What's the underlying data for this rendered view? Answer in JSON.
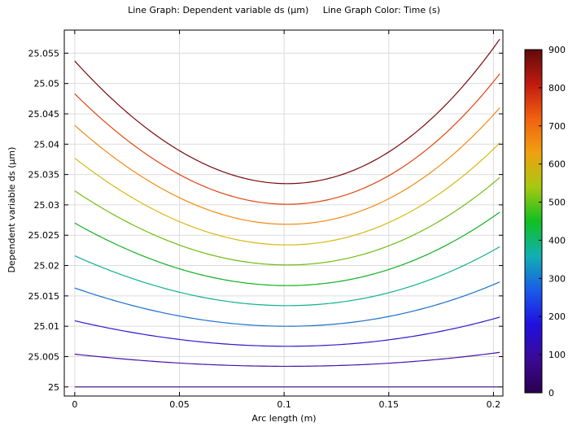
{
  "chart_data": {
    "type": "line",
    "title": "Line Graph: Dependent variable ds (µm)     Line Graph Color: Time (s)",
    "xlabel": "Arc length (m)",
    "ylabel": "Dependent variable ds (µm)",
    "xlim": [
      -0.005,
      0.2045
    ],
    "ylim": [
      24.9985,
      25.0588
    ],
    "grid": true,
    "x_ticks": [
      0,
      0.05,
      0.1,
      0.15,
      0.2
    ],
    "x_tick_labels": [
      "0",
      "0.05",
      "0.1",
      "0.15",
      "0.2"
    ],
    "y_ticks": [
      25,
      25.005,
      25.01,
      25.015,
      25.02,
      25.025,
      25.03,
      25.035,
      25.04,
      25.045,
      25.05,
      25.055
    ],
    "y_tick_labels": [
      "25",
      "25.005",
      "25.01",
      "25.015",
      "25.02",
      "25.025",
      "25.03",
      "25.035",
      "25.04",
      "25.045",
      "25.05",
      "25.055"
    ],
    "x_range": [
      0,
      0.203
    ],
    "series": [
      {
        "time": 0,
        "y_left": 25.0,
        "y_min": 25.0,
        "y_right": 25.0,
        "color": "#3b0a78"
      },
      {
        "time": 90,
        "y_left": 25.0054,
        "y_min": 25.0034,
        "y_right": 25.0057,
        "color": "#4a10a8"
      },
      {
        "time": 180,
        "y_left": 25.0109,
        "y_min": 25.0067,
        "y_right": 25.0115,
        "color": "#2a18d0"
      },
      {
        "time": 270,
        "y_left": 25.0163,
        "y_min": 25.01,
        "y_right": 25.0173,
        "color": "#1a70cc"
      },
      {
        "time": 360,
        "y_left": 25.0216,
        "y_min": 25.0134,
        "y_right": 25.0231,
        "color": "#10b090"
      },
      {
        "time": 450,
        "y_left": 25.027,
        "y_min": 25.0167,
        "y_right": 25.0288,
        "color": "#10b020"
      },
      {
        "time": 540,
        "y_left": 25.0323,
        "y_min": 25.0201,
        "y_right": 25.0345,
        "color": "#70bc10"
      },
      {
        "time": 630,
        "y_left": 25.0377,
        "y_min": 25.0234,
        "y_right": 25.0402,
        "color": "#d8b810"
      },
      {
        "time": 720,
        "y_left": 25.0431,
        "y_min": 25.0268,
        "y_right": 25.046,
        "color": "#f28a10"
      },
      {
        "time": 810,
        "y_left": 25.0483,
        "y_min": 25.0301,
        "y_right": 25.0516,
        "color": "#e04410"
      },
      {
        "time": 900,
        "y_left": 25.0537,
        "y_min": 25.0335,
        "y_right": 25.0573,
        "color": "#7a0a0a"
      }
    ],
    "colorbar": {
      "range": [
        0,
        900
      ],
      "tick_values": [
        0,
        100,
        200,
        300,
        400,
        500,
        600,
        700,
        800,
        900
      ],
      "tick_labels": [
        "0",
        "100",
        "200",
        "300",
        "400",
        "500",
        "600",
        "700",
        "800",
        "900"
      ],
      "colors": [
        "#2a004e",
        "#3a0a96",
        "#2010e0",
        "#1a5ce8",
        "#10b0b0",
        "#10c020",
        "#a8c810",
        "#f0a010",
        "#f06010",
        "#c01a10",
        "#600a0a"
      ]
    }
  }
}
